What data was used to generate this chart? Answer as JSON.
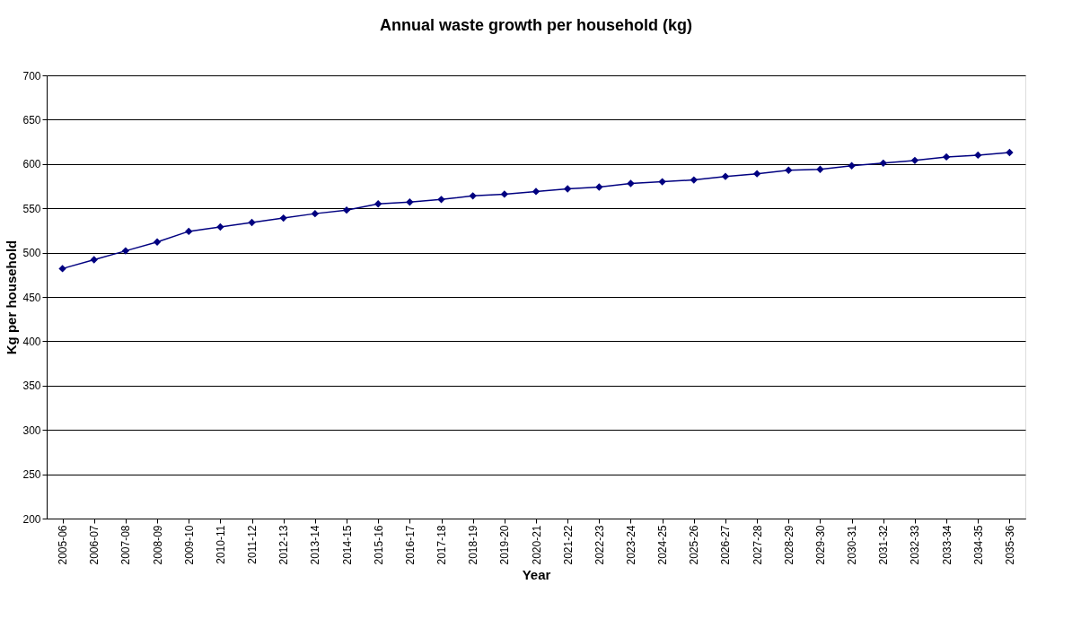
{
  "chart_data": {
    "type": "line",
    "title": "Annual waste growth per household (kg)",
    "xlabel": "Year",
    "ylabel": "Kg per household",
    "categories": [
      "2005-06",
      "2006-07",
      "2007-08",
      "2008-09",
      "2009-10",
      "2010-11",
      "2011-12",
      "2012-13",
      "2013-14",
      "2014-15",
      "2015-16",
      "2016-17",
      "2017-18",
      "2018-19",
      "2019-20",
      "2020-21",
      "2021-22",
      "2022-23",
      "2023-24",
      "2024-25",
      "2025-26",
      "2026-27",
      "2027-28",
      "2028-29",
      "2029-30",
      "2030-31",
      "2031-32",
      "2032-33",
      "2033-34",
      "2034-35",
      "2035-36"
    ],
    "series": [
      {
        "color": "#000080",
        "values": [
          482,
          492,
          502,
          512,
          524,
          529,
          534,
          539,
          544,
          548,
          555,
          557,
          560,
          564,
          566,
          569,
          572,
          574,
          578,
          580,
          582,
          586,
          589,
          593,
          594,
          598,
          601,
          604,
          608,
          610,
          613
        ]
      }
    ],
    "ylim": [
      200,
      700
    ],
    "yticks": [
      200,
      250,
      300,
      350,
      400,
      450,
      500,
      550,
      600,
      650,
      700
    ],
    "grid": "y",
    "marker": "diamond",
    "line_style": "solid"
  }
}
